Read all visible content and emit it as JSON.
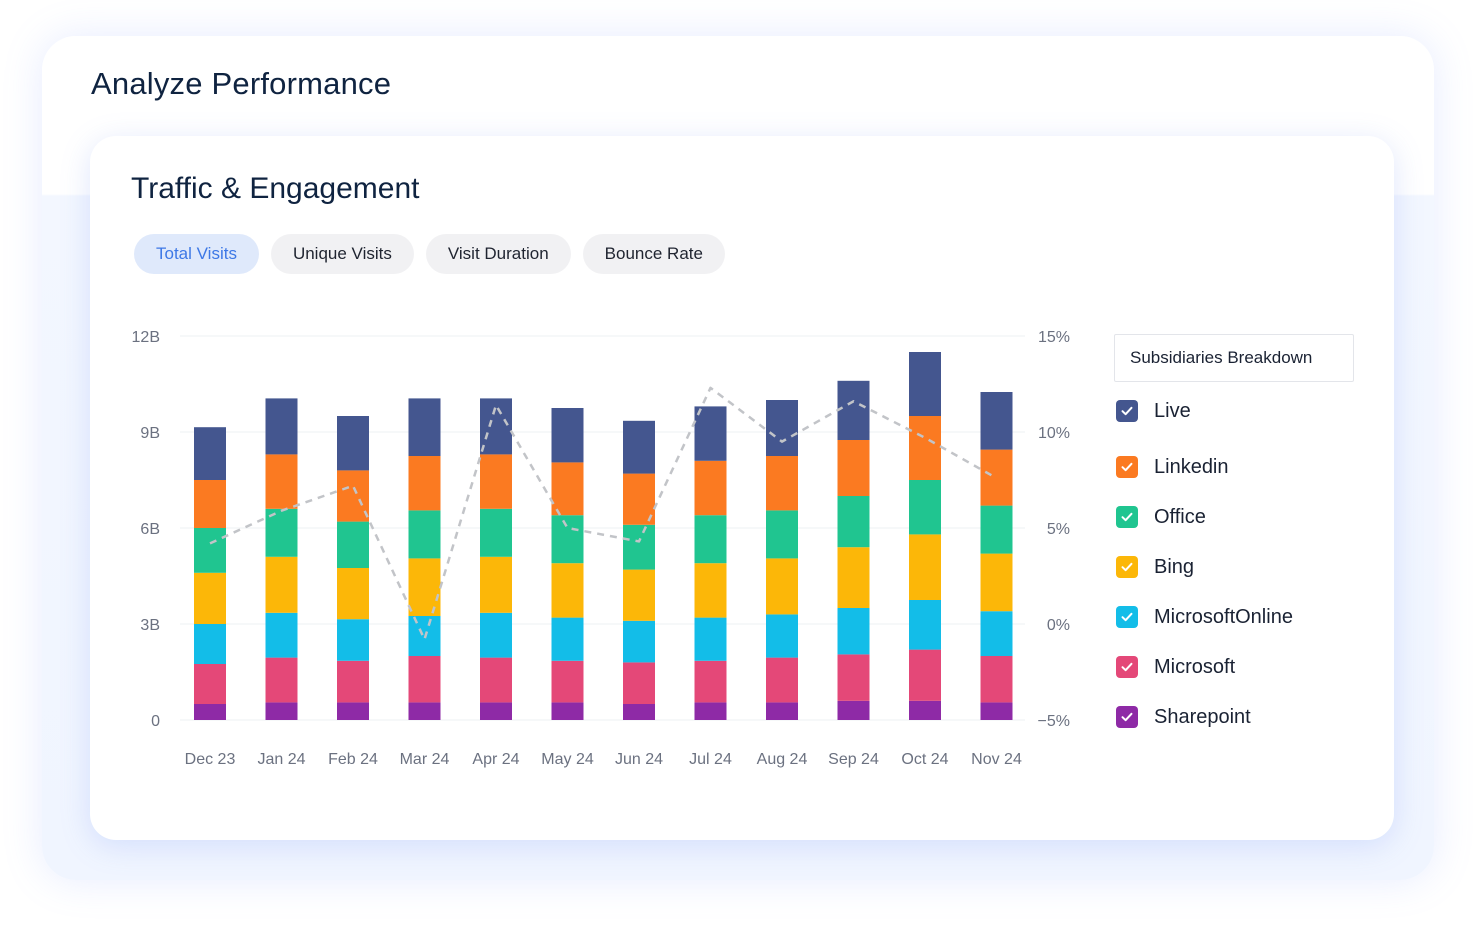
{
  "page": {
    "title": "Analyze Performance"
  },
  "card": {
    "title": "Traffic & Engagement"
  },
  "tabs": [
    {
      "label": "Total Visits",
      "active": true
    },
    {
      "label": "Unique Visits",
      "active": false
    },
    {
      "label": "Visit Duration",
      "active": false
    },
    {
      "label": "Bounce Rate",
      "active": false
    }
  ],
  "legend": {
    "title": "Subsidiaries Breakdown",
    "items": [
      {
        "label": "Live",
        "color": "#44568f",
        "checked": true
      },
      {
        "label": "Linkedin",
        "color": "#fb7a21",
        "checked": true
      },
      {
        "label": "Office",
        "color": "#20c590",
        "checked": true
      },
      {
        "label": "Bing",
        "color": "#fcb708",
        "checked": true
      },
      {
        "label": "MicrosoftOnline",
        "color": "#13bde8",
        "checked": true
      },
      {
        "label": "Microsoft",
        "color": "#e44878",
        "checked": true
      },
      {
        "label": "Sharepoint",
        "color": "#8e2aa6",
        "checked": true
      }
    ]
  },
  "chart_data": {
    "type": "bar",
    "stacked": true,
    "categories": [
      "Dec 23",
      "Jan 24",
      "Feb 24",
      "Mar 24",
      "Apr 24",
      "May 24",
      "Jun 24",
      "Jul 24",
      "Aug 24",
      "Sep 24",
      "Oct 24",
      "Nov 24"
    ],
    "ylim": [
      0,
      12
    ],
    "yticks": [
      0,
      3,
      6,
      9,
      12
    ],
    "ytick_labels": [
      "0",
      "3B",
      "6B",
      "9B",
      "12B"
    ],
    "y2lim": [
      -5,
      15
    ],
    "y2ticks": [
      -5,
      0,
      5,
      10,
      15
    ],
    "y2tick_labels": [
      "−5%",
      "0%",
      "5%",
      "10%",
      "15%"
    ],
    "grid": true,
    "legend_position": "right",
    "series": [
      {
        "name": "Sharepoint",
        "color": "#8e2aa6",
        "values": [
          0.5,
          0.55,
          0.55,
          0.55,
          0.55,
          0.55,
          0.5,
          0.55,
          0.55,
          0.6,
          0.6,
          0.55
        ]
      },
      {
        "name": "Microsoft",
        "color": "#e44878",
        "values": [
          1.25,
          1.4,
          1.3,
          1.45,
          1.4,
          1.3,
          1.3,
          1.3,
          1.4,
          1.45,
          1.6,
          1.45
        ]
      },
      {
        "name": "MicrosoftOnline",
        "color": "#13bde8",
        "values": [
          1.25,
          1.4,
          1.3,
          1.25,
          1.4,
          1.35,
          1.3,
          1.35,
          1.35,
          1.45,
          1.55,
          1.4
        ]
      },
      {
        "name": "Bing",
        "color": "#fcb708",
        "values": [
          1.6,
          1.75,
          1.6,
          1.8,
          1.75,
          1.7,
          1.6,
          1.7,
          1.75,
          1.9,
          2.05,
          1.8
        ]
      },
      {
        "name": "Office",
        "color": "#20c590",
        "values": [
          1.4,
          1.5,
          1.45,
          1.5,
          1.5,
          1.5,
          1.4,
          1.5,
          1.5,
          1.6,
          1.7,
          1.5
        ]
      },
      {
        "name": "Linkedin",
        "color": "#fb7a21",
        "values": [
          1.5,
          1.7,
          1.6,
          1.7,
          1.7,
          1.65,
          1.6,
          1.7,
          1.7,
          1.75,
          2.0,
          1.75
        ]
      },
      {
        "name": "Live",
        "color": "#44568f",
        "values": [
          1.65,
          1.75,
          1.7,
          1.8,
          1.75,
          1.7,
          1.65,
          1.7,
          1.75,
          1.85,
          2.0,
          1.8
        ]
      }
    ],
    "line_series": {
      "name": "Bounce Rate",
      "axis": "secondary",
      "color": "#c2c4c8",
      "values": [
        4.2,
        5.9,
        7.2,
        -0.8,
        11.4,
        5.0,
        4.3,
        12.3,
        9.5,
        11.6,
        9.7,
        7.6
      ]
    }
  }
}
